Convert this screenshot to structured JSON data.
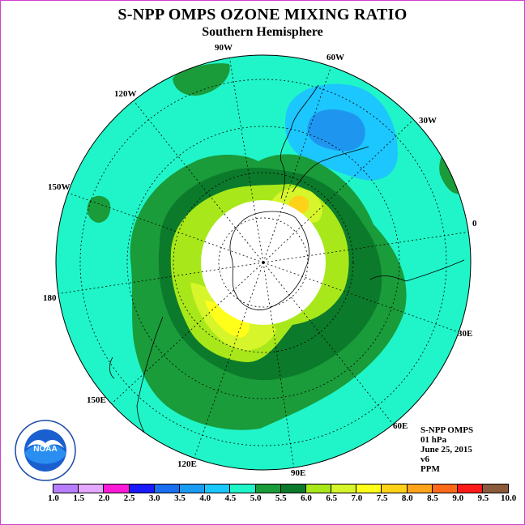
{
  "header": {
    "title": "S-NPP OMPS OZONE MIXING RATIO",
    "subtitle": "Southern Hemisphere"
  },
  "map": {
    "projection": "south-polar-stereographic",
    "longitude_labels": [
      "90W",
      "60W",
      "30W",
      "0",
      "30E",
      "60E",
      "90E",
      "120E",
      "150E",
      "180",
      "150W",
      "120W"
    ],
    "colors": {
      "background_field": "#1ff5c8",
      "ring_5_5": "#1a9c3a",
      "ring_6_0": "#0c7a2b",
      "ring_6_5": "#a8e81a",
      "ring_7_0": "#d6f52a",
      "ring_7_5": "#ffff1a",
      "low_4_5": "#1cc6ff",
      "low_3_5": "#1e96f0",
      "polar_night": "#ffffff",
      "coastline": "#000000"
    }
  },
  "info": {
    "instrument": "S-NPP OMPS",
    "level": "01 hPa",
    "date": "June 25, 2015",
    "version": "v6",
    "units": "PPM"
  },
  "logo": {
    "text": "NOAA",
    "icon": "noaa-logo"
  },
  "colorbar": {
    "ticks": [
      "1.0",
      "1.5",
      "2.0",
      "2.5",
      "3.0",
      "3.5",
      "4.0",
      "4.5",
      "5.0",
      "5.5",
      "6.0",
      "6.5",
      "7.0",
      "7.5",
      "8.0",
      "8.5",
      "9.0",
      "9.5",
      "10.0"
    ],
    "colors": [
      "#b77fff",
      "#e3a8ff",
      "#ff1ad8",
      "#1a1aff",
      "#1a6ef0",
      "#1a9cf5",
      "#1ac8ff",
      "#1ff5c8",
      "#1a9c3a",
      "#0c7a2b",
      "#a8e81a",
      "#d6f52a",
      "#ffff1a",
      "#ffd21a",
      "#ffa41a",
      "#ff6a1a",
      "#ff1a1a",
      "#8b5a3c"
    ]
  }
}
